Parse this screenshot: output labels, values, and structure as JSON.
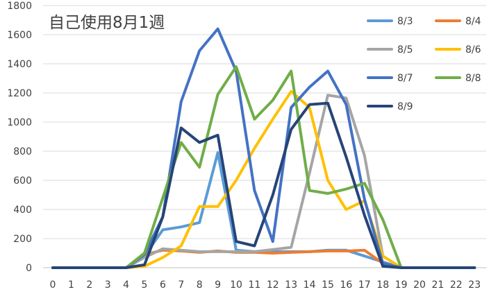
{
  "chart_data": {
    "type": "line",
    "title": "自己使用8月1週",
    "xlabel": "",
    "ylabel": "",
    "x": [
      0,
      1,
      2,
      3,
      4,
      5,
      6,
      7,
      8,
      9,
      10,
      11,
      12,
      13,
      14,
      15,
      16,
      17,
      18,
      19,
      20,
      21,
      22,
      23
    ],
    "ylim": [
      0,
      1800
    ],
    "yticks": [
      0,
      200,
      400,
      600,
      800,
      1000,
      1200,
      1400,
      1600,
      1800
    ],
    "grid": "horizontal",
    "legend_position": "top-right",
    "series": [
      {
        "name": "8/3",
        "color": "#5B9BD5",
        "values": [
          0,
          0,
          0,
          0,
          0,
          80,
          260,
          280,
          310,
          790,
          120,
          110,
          110,
          110,
          110,
          120,
          120,
          80,
          40,
          0,
          0,
          0,
          0,
          0
        ]
      },
      {
        "name": "8/4",
        "color": "#ED7D31",
        "values": [
          0,
          0,
          0,
          0,
          0,
          90,
          120,
          115,
          105,
          115,
          105,
          105,
          100,
          105,
          110,
          115,
          115,
          120,
          30,
          0,
          0,
          0,
          0,
          0
        ]
      },
      {
        "name": "8/5",
        "color": "#A5A5A5",
        "values": [
          0,
          0,
          0,
          0,
          0,
          70,
          130,
          120,
          110,
          110,
          110,
          110,
          125,
          140,
          650,
          1185,
          1165,
          770,
          80,
          0,
          0,
          0,
          0,
          0
        ]
      },
      {
        "name": "8/6",
        "color": "#FFC000",
        "values": [
          0,
          0,
          0,
          0,
          0,
          10,
          70,
          150,
          420,
          420,
          600,
          820,
          1020,
          1210,
          1100,
          600,
          400,
          460,
          80,
          0,
          0,
          0,
          0,
          0
        ]
      },
      {
        "name": "8/7",
        "color": "#4472C4",
        "values": [
          0,
          0,
          0,
          0,
          0,
          90,
          350,
          1140,
          1490,
          1640,
          1350,
          530,
          180,
          1100,
          1240,
          1350,
          1120,
          470,
          30,
          0,
          0,
          0,
          0,
          0
        ]
      },
      {
        "name": "8/8",
        "color": "#70AD47",
        "values": [
          0,
          0,
          0,
          0,
          0,
          100,
          480,
          860,
          690,
          1190,
          1380,
          1020,
          1150,
          1350,
          530,
          510,
          540,
          580,
          330,
          0,
          0,
          0,
          0,
          0
        ]
      },
      {
        "name": "8/9",
        "color": "#264478",
        "values": [
          0,
          0,
          0,
          0,
          0,
          20,
          350,
          960,
          860,
          910,
          180,
          150,
          500,
          950,
          1120,
          1130,
          760,
          360,
          10,
          0,
          0,
          0,
          0,
          0
        ]
      }
    ]
  }
}
